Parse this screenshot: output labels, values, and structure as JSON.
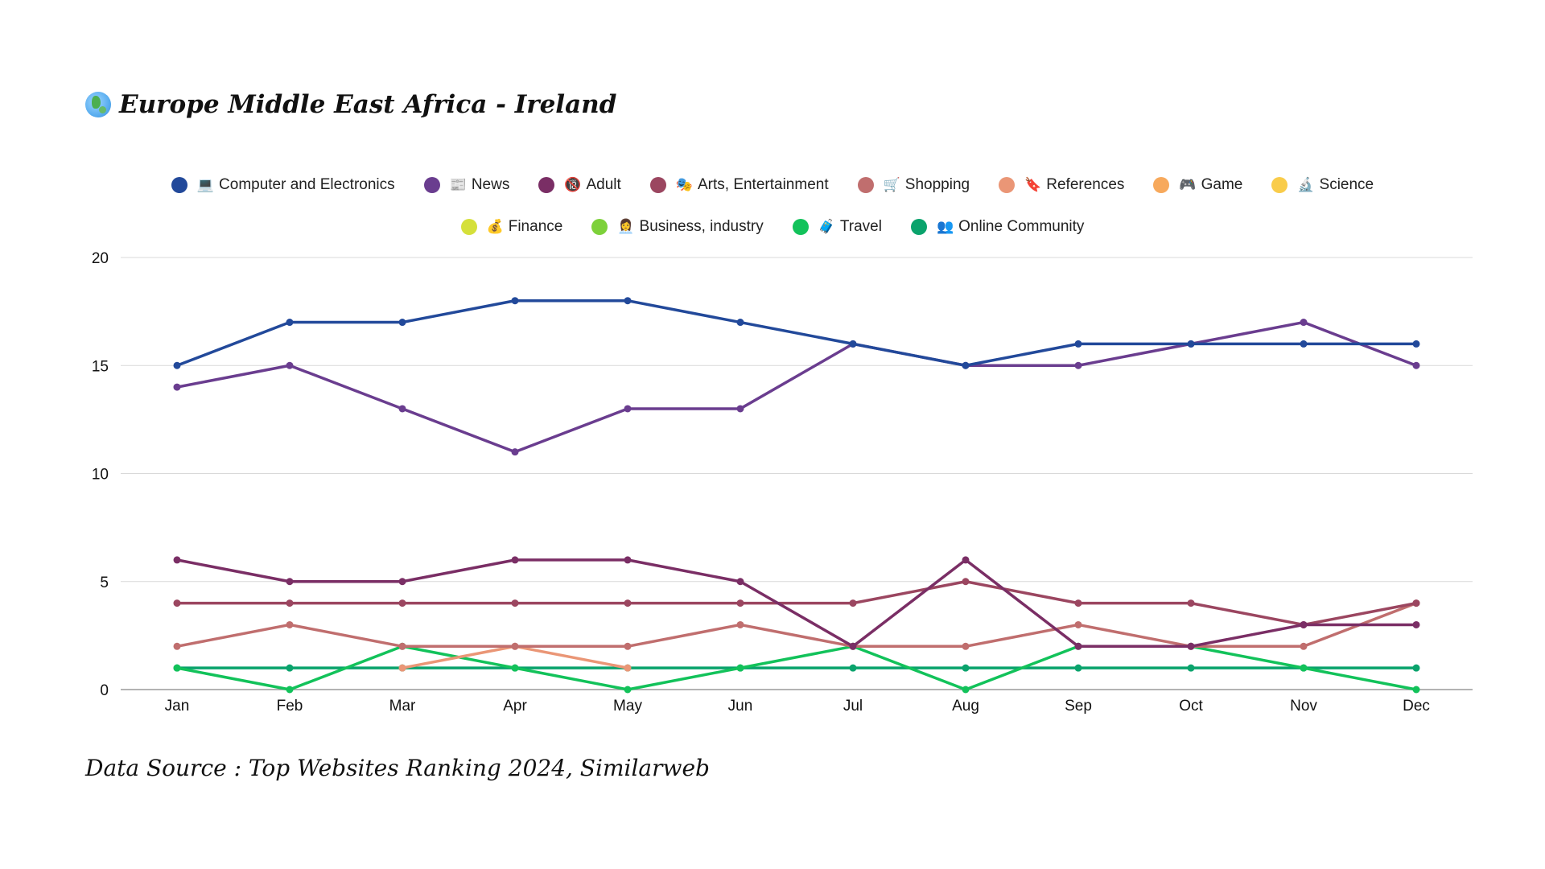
{
  "title": {
    "icon": "globe-icon",
    "text": "Europe Middle East Africa - Ireland"
  },
  "source": "Data Source : Top Websites Ranking 2024, Similarweb",
  "chart_data": {
    "type": "line",
    "title": "Europe Middle East Africa - Ireland",
    "xlabel": "",
    "ylabel": "",
    "ylim": [
      0,
      20
    ],
    "yticks": [
      0,
      5,
      10,
      15,
      20
    ],
    "grid": true,
    "legend_position": "top",
    "categories": [
      "Jan",
      "Feb",
      "Mar",
      "Apr",
      "May",
      "Jun",
      "Jul",
      "Aug",
      "Sep",
      "Oct",
      "Nov",
      "Dec"
    ],
    "series": [
      {
        "name": "Computer and Electronics",
        "emoji": "💻",
        "color": "#22499a",
        "values": [
          15,
          17,
          17,
          18,
          18,
          17,
          16,
          15,
          16,
          16,
          16,
          16
        ]
      },
      {
        "name": "News",
        "emoji": "📰",
        "color": "#6a3d8f",
        "values": [
          14,
          15,
          13,
          11,
          13,
          13,
          16,
          15,
          15,
          16,
          17,
          15
        ]
      },
      {
        "name": "Adult",
        "emoji": "🔞",
        "color": "#7a2e65",
        "values": [
          6,
          5,
          5,
          6,
          6,
          5,
          2,
          6,
          2,
          2,
          3,
          3
        ]
      },
      {
        "name": "Arts, Entertainment",
        "emoji": "🎭",
        "color": "#9b4660",
        "values": [
          4,
          4,
          4,
          4,
          4,
          4,
          4,
          5,
          4,
          4,
          3,
          4
        ]
      },
      {
        "name": "Shopping",
        "emoji": "🛒",
        "color": "#c06e6e",
        "values": [
          2,
          3,
          2,
          2,
          2,
          3,
          2,
          2,
          3,
          2,
          2,
          4
        ]
      },
      {
        "name": "References",
        "emoji": "🔖",
        "color": "#ea9676",
        "values": [
          null,
          null,
          1,
          2,
          1,
          null,
          null,
          null,
          null,
          null,
          null,
          null
        ]
      },
      {
        "name": "Game",
        "emoji": "🎮",
        "color": "#f7a95c",
        "values": [
          null,
          null,
          null,
          null,
          null,
          null,
          null,
          null,
          null,
          null,
          null,
          null
        ]
      },
      {
        "name": "Science",
        "emoji": "🔬",
        "color": "#f9cc4a",
        "values": [
          null,
          null,
          null,
          null,
          null,
          null,
          null,
          null,
          null,
          null,
          null,
          null
        ]
      },
      {
        "name": "Finance",
        "emoji": "💰",
        "color": "#d5e03a",
        "values": [
          null,
          null,
          null,
          null,
          null,
          null,
          null,
          null,
          null,
          null,
          null,
          null
        ]
      },
      {
        "name": "Business, industry",
        "emoji": "👩‍💼",
        "color": "#7dd13a",
        "values": [
          null,
          null,
          null,
          null,
          null,
          null,
          null,
          null,
          null,
          null,
          null,
          null
        ]
      },
      {
        "name": "Travel",
        "emoji": "🧳",
        "color": "#12c25a",
        "values": [
          1,
          0,
          2,
          1,
          0,
          1,
          2,
          0,
          2,
          2,
          1,
          0
        ]
      },
      {
        "name": "Online Community",
        "emoji": "👥",
        "color": "#0aa36c",
        "values": [
          1,
          1,
          1,
          1,
          1,
          1,
          1,
          1,
          1,
          1,
          1,
          1
        ]
      }
    ]
  }
}
